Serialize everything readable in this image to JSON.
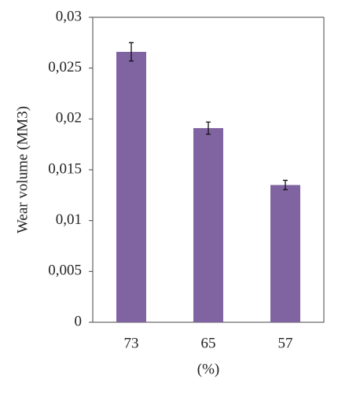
{
  "chart_data": {
    "type": "bar",
    "y_label": "Wear volume (MM3)",
    "x_label": "(%)",
    "categories": [
      "73",
      "65",
      "57"
    ],
    "values": [
      0.0266,
      0.0191,
      0.0135
    ],
    "errors": [
      0.0009,
      0.0006,
      0.00046
    ],
    "color": "#8064a2",
    "ylim": [
      0,
      0.03
    ],
    "yticks": [
      0,
      {
        "value": 0.005,
        "label": "0,005"
      },
      {
        "value": 0.01,
        "label": "0,01"
      },
      {
        "value": 0.015,
        "label": "0,015"
      },
      {
        "value": 0.02,
        "label": "0,02"
      },
      {
        "value": 0.025,
        "label": "0,025"
      },
      {
        "value": 0.03,
        "label": "0,03"
      }
    ]
  }
}
